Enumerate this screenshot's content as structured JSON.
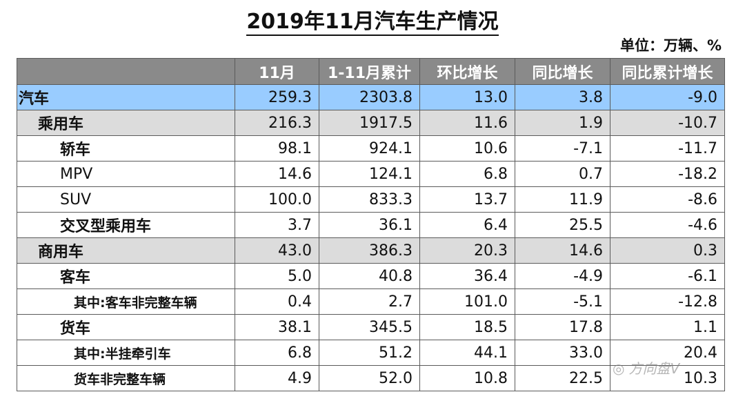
{
  "title": "2019年11月汽车生产情况",
  "unit": "单位：万辆、%",
  "columns": [
    "",
    "11月",
    "1-11月累计",
    "环比增长",
    "同比增长",
    "同比累计增长"
  ],
  "rows": [
    {
      "label": "汽车",
      "level": "lvl0",
      "values": [
        "259.3",
        "2303.8",
        "13.0",
        "3.8",
        "-9.0"
      ]
    },
    {
      "label": "乘用车",
      "level": "lvl1",
      "values": [
        "216.3",
        "1917.5",
        "11.6",
        "1.9",
        "-10.7"
      ]
    },
    {
      "label": "轿车",
      "level": "lvl2",
      "values": [
        "98.1",
        "924.1",
        "10.6",
        "-7.1",
        "-11.7"
      ]
    },
    {
      "label": "MPV",
      "level": "lvl2n",
      "values": [
        "14.6",
        "124.1",
        "6.8",
        "0.7",
        "-18.2"
      ]
    },
    {
      "label": "SUV",
      "level": "lvl2n",
      "values": [
        "100.0",
        "833.3",
        "13.7",
        "11.9",
        "-8.6"
      ]
    },
    {
      "label": "交叉型乘用车",
      "level": "lvl2",
      "values": [
        "3.7",
        "36.1",
        "6.4",
        "25.5",
        "-4.6"
      ]
    },
    {
      "label": "商用车",
      "level": "lvl1",
      "values": [
        "43.0",
        "386.3",
        "20.3",
        "14.6",
        "0.3"
      ]
    },
    {
      "label": "客车",
      "level": "lvl2",
      "values": [
        "5.0",
        "40.8",
        "36.4",
        "-4.9",
        "-6.1"
      ]
    },
    {
      "label": "其中:客车非完整车辆",
      "level": "lvl3",
      "values": [
        "0.4",
        "2.7",
        "101.0",
        "-5.1",
        "-12.8"
      ]
    },
    {
      "label": "货车",
      "level": "lvl2",
      "values": [
        "38.1",
        "345.5",
        "18.5",
        "17.8",
        "1.1"
      ]
    },
    {
      "label": "其中:半挂牵引车",
      "level": "lvl3",
      "values": [
        "6.8",
        "51.2",
        "44.1",
        "33.0",
        "20.4"
      ]
    },
    {
      "label": "货车非完整车辆",
      "level": "lvl3",
      "values": [
        "4.9",
        "52.0",
        "10.8",
        "22.5",
        "10.3"
      ]
    }
  ],
  "watermark": {
    "icon": "wechat-icon",
    "text": "方向盘V"
  },
  "colors": {
    "header_bg": "#8a8a8a",
    "total_row": "#99ccff",
    "category_row": "#dcdcdc"
  }
}
